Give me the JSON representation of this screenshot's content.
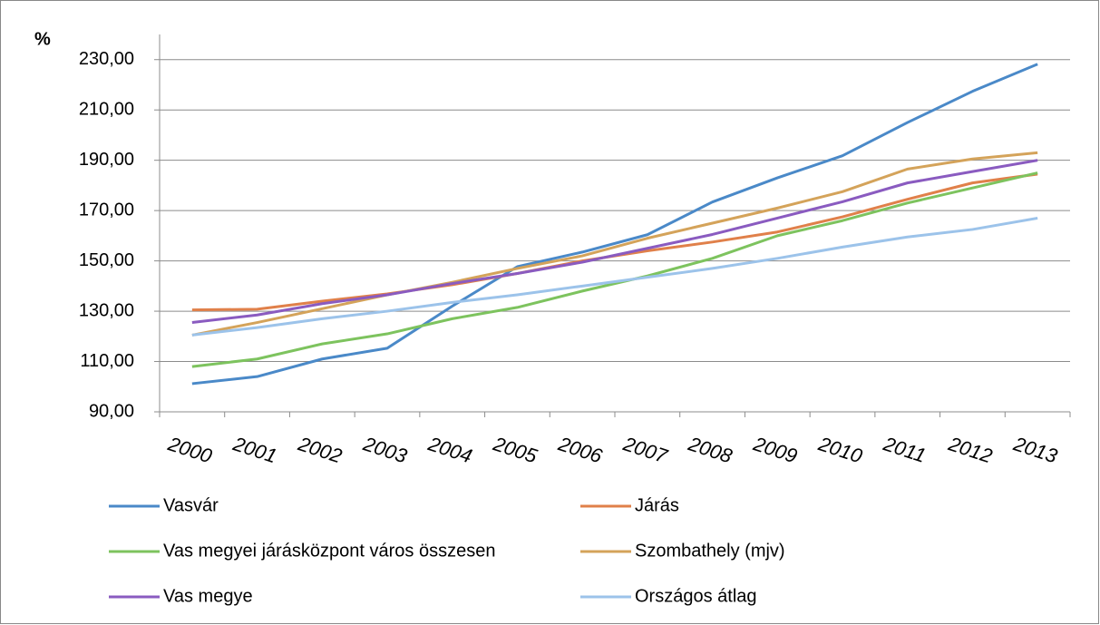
{
  "chart_data": {
    "type": "line",
    "y_label": "%",
    "categories": [
      "2000",
      "2001",
      "2002",
      "2003",
      "2004",
      "2005",
      "2006",
      "2007",
      "2008",
      "2009",
      "2010",
      "2011",
      "2012",
      "2013"
    ],
    "series": [
      {
        "name": "Vasvár",
        "color": "#4a89c8",
        "values": [
          101.2,
          104,
          111,
          115.3,
          132,
          147.7,
          153.5,
          160.4,
          173.4,
          183,
          191.8,
          205,
          217.4,
          228.2
        ]
      },
      {
        "name": "Járás",
        "color": "#e0804a",
        "values": [
          130.5,
          130.8,
          134,
          136.9,
          140.5,
          145,
          150,
          154,
          157.5,
          161.5,
          167.5,
          174.5,
          181,
          184.5
        ]
      },
      {
        "name": "Vas megyei járásközpont város összesen",
        "color": "#7dc35e",
        "values": [
          108,
          111,
          117,
          121,
          127,
          131.5,
          138,
          144,
          151,
          160,
          166,
          173,
          179,
          185
        ]
      },
      {
        "name": "Szombathely (mjv)",
        "color": "#d4a35a",
        "values": [
          120.5,
          125.5,
          131,
          136.5,
          141.5,
          147,
          152,
          159,
          165,
          171,
          177.5,
          186.5,
          190.5,
          193
        ]
      },
      {
        "name": "Vas megye",
        "color": "#8a5bc0",
        "values": [
          125.5,
          128.5,
          133,
          136.5,
          141,
          145,
          149.5,
          155,
          160.5,
          167,
          173.5,
          181,
          185.5,
          190
        ]
      },
      {
        "name": "Országos átlag",
        "color": "#9cc3ea",
        "values": [
          120.5,
          123.5,
          127,
          130,
          133.5,
          136.5,
          140,
          143.5,
          147,
          151,
          155.5,
          159.5,
          162.5,
          167
        ]
      }
    ],
    "ylim": [
      90,
      240
    ],
    "yticks": [
      {
        "value": 90,
        "label": "90,00"
      },
      {
        "value": 110,
        "label": "110,00"
      },
      {
        "value": 130,
        "label": "130,00"
      },
      {
        "value": 150,
        "label": "150,00"
      },
      {
        "value": 170,
        "label": "170,00"
      },
      {
        "value": 190,
        "label": "190,00"
      },
      {
        "value": 210,
        "label": "210,00"
      },
      {
        "value": 230,
        "label": "230,00"
      }
    ],
    "grid": true
  }
}
